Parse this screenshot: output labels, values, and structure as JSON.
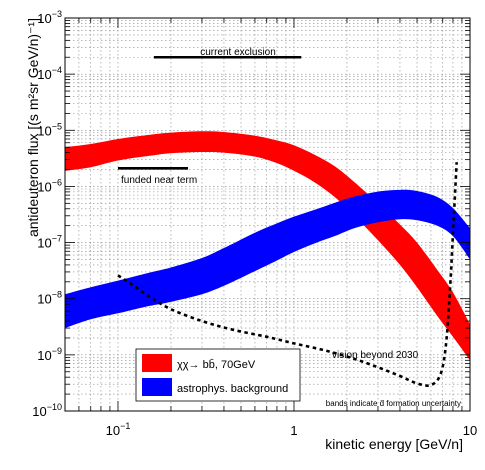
{
  "chart_data": {
    "type": "area",
    "xlabel": "kinetic energy [GeV/n]",
    "ylabel": "antideuteron flux [(s m²sr GeV/n)⁻¹]",
    "xscale": "log",
    "yscale": "log",
    "xlim": [
      0.05,
      10
    ],
    "ylim": [
      1e-10,
      0.001
    ],
    "x_ticks": [
      {
        "value": 0.1,
        "base": "10",
        "exp": "−1"
      },
      {
        "value": 1,
        "base": "1",
        "exp": ""
      },
      {
        "value": 10,
        "base": "10",
        "exp": ""
      }
    ],
    "y_ticks": [
      {
        "value": 1e-10,
        "base": "10",
        "exp": "−10"
      },
      {
        "value": 1e-09,
        "base": "10",
        "exp": "−9"
      },
      {
        "value": 1e-08,
        "base": "10",
        "exp": "−8"
      },
      {
        "value": 1e-07,
        "base": "10",
        "exp": "−7"
      },
      {
        "value": 1e-06,
        "base": "10",
        "exp": "−6"
      },
      {
        "value": 1e-05,
        "base": "10",
        "exp": "−5"
      },
      {
        "value": 0.0001,
        "base": "10",
        "exp": "−4"
      },
      {
        "value": 0.001,
        "base": "10",
        "exp": "−3"
      }
    ],
    "grid": true,
    "legend_position": "bottom-left",
    "series": [
      {
        "name": "χχ→ bb̄, 70GeV",
        "kind": "band",
        "color": "#ff0000",
        "x": [
          0.05,
          0.07,
          0.1,
          0.15,
          0.2,
          0.3,
          0.4,
          0.6,
          0.8,
          1,
          1.3,
          1.7,
          2.2,
          3,
          4,
          5,
          6.5,
          8,
          10
        ],
        "upper": [
          5e-06,
          5.7e-06,
          7e-06,
          8.3e-06,
          9.1e-06,
          9.6e-06,
          9.3e-06,
          8e-06,
          6.6e-06,
          5.4e-06,
          3.7e-06,
          2.3e-06,
          1.2e-06,
          5e-07,
          2.1e-07,
          1e-07,
          3.3e-08,
          1.3e-08,
          3.5e-09
        ],
        "lower": [
          1.9e-06,
          2.2e-06,
          2.9e-06,
          3.5e-06,
          3.9e-06,
          4.1e-06,
          4e-06,
          3.4e-06,
          2.6e-06,
          1.9e-06,
          1.2e-06,
          6.5e-07,
          3e-07,
          1.1e-07,
          4e-08,
          1.6e-08,
          5e-09,
          2.1e-09,
          8e-10
        ]
      },
      {
        "name": "astrophys. background",
        "kind": "band",
        "color": "#0000ff",
        "x": [
          0.05,
          0.07,
          0.1,
          0.15,
          0.2,
          0.3,
          0.4,
          0.6,
          0.8,
          1,
          1.3,
          1.7,
          2.2,
          3,
          4,
          5,
          6.5,
          8,
          10
        ],
        "upper": [
          1.2e-08,
          1.6e-08,
          2.1e-08,
          2.9e-08,
          3.6e-08,
          5.3e-08,
          8e-08,
          1.5e-07,
          2.2e-07,
          2.9e-07,
          3.8e-07,
          5.1e-07,
          6.6e-07,
          8.1e-07,
          8.7e-07,
          8.3e-07,
          6.5e-07,
          4.1e-07,
          1.8e-07
        ],
        "lower": [
          3e-09,
          4.3e-09,
          5.5e-09,
          7.4e-09,
          8.8e-09,
          1.2e-08,
          1.7e-08,
          3.1e-08,
          4.8e-08,
          6.8e-08,
          9.6e-08,
          1.3e-07,
          1.8e-07,
          2.3e-07,
          2.6e-07,
          2.5e-07,
          2e-07,
          1.3e-07,
          5e-08
        ]
      },
      {
        "name": "vision beyond 2030",
        "kind": "dotted-line",
        "color": "#000000",
        "x": [
          0.1,
          0.12,
          0.15,
          0.2,
          0.3,
          0.45,
          0.7,
          1,
          1.5,
          2.2,
          3,
          4,
          5,
          6,
          6.8,
          7.3,
          7.7,
          8.1,
          8.4
        ],
        "y": [
          2.6e-08,
          1.8e-08,
          1.1e-08,
          6.5e-09,
          4e-09,
          2.8e-09,
          2.1e-09,
          1.6e-09,
          1.2e-09,
          8.5e-10,
          6e-10,
          4.2e-10,
          3.1e-10,
          2.9e-10,
          4.5e-10,
          1.5e-09,
          1.5e-08,
          3e-07,
          2.7e-06
        ]
      }
    ],
    "segments": [
      {
        "name": "current exclusion",
        "x1": 0.16,
        "x2": 1.1,
        "y": 0.0002
      },
      {
        "name": "funded near term",
        "x1": 0.1,
        "x2": 0.25,
        "y": 2.1e-06
      }
    ],
    "annotations": [
      {
        "text": "current exclusion"
      },
      {
        "text": "funded near term"
      },
      {
        "text": "vision beyond 2030"
      },
      {
        "text": "bands indicate d̄ formation uncertainty"
      }
    ]
  }
}
